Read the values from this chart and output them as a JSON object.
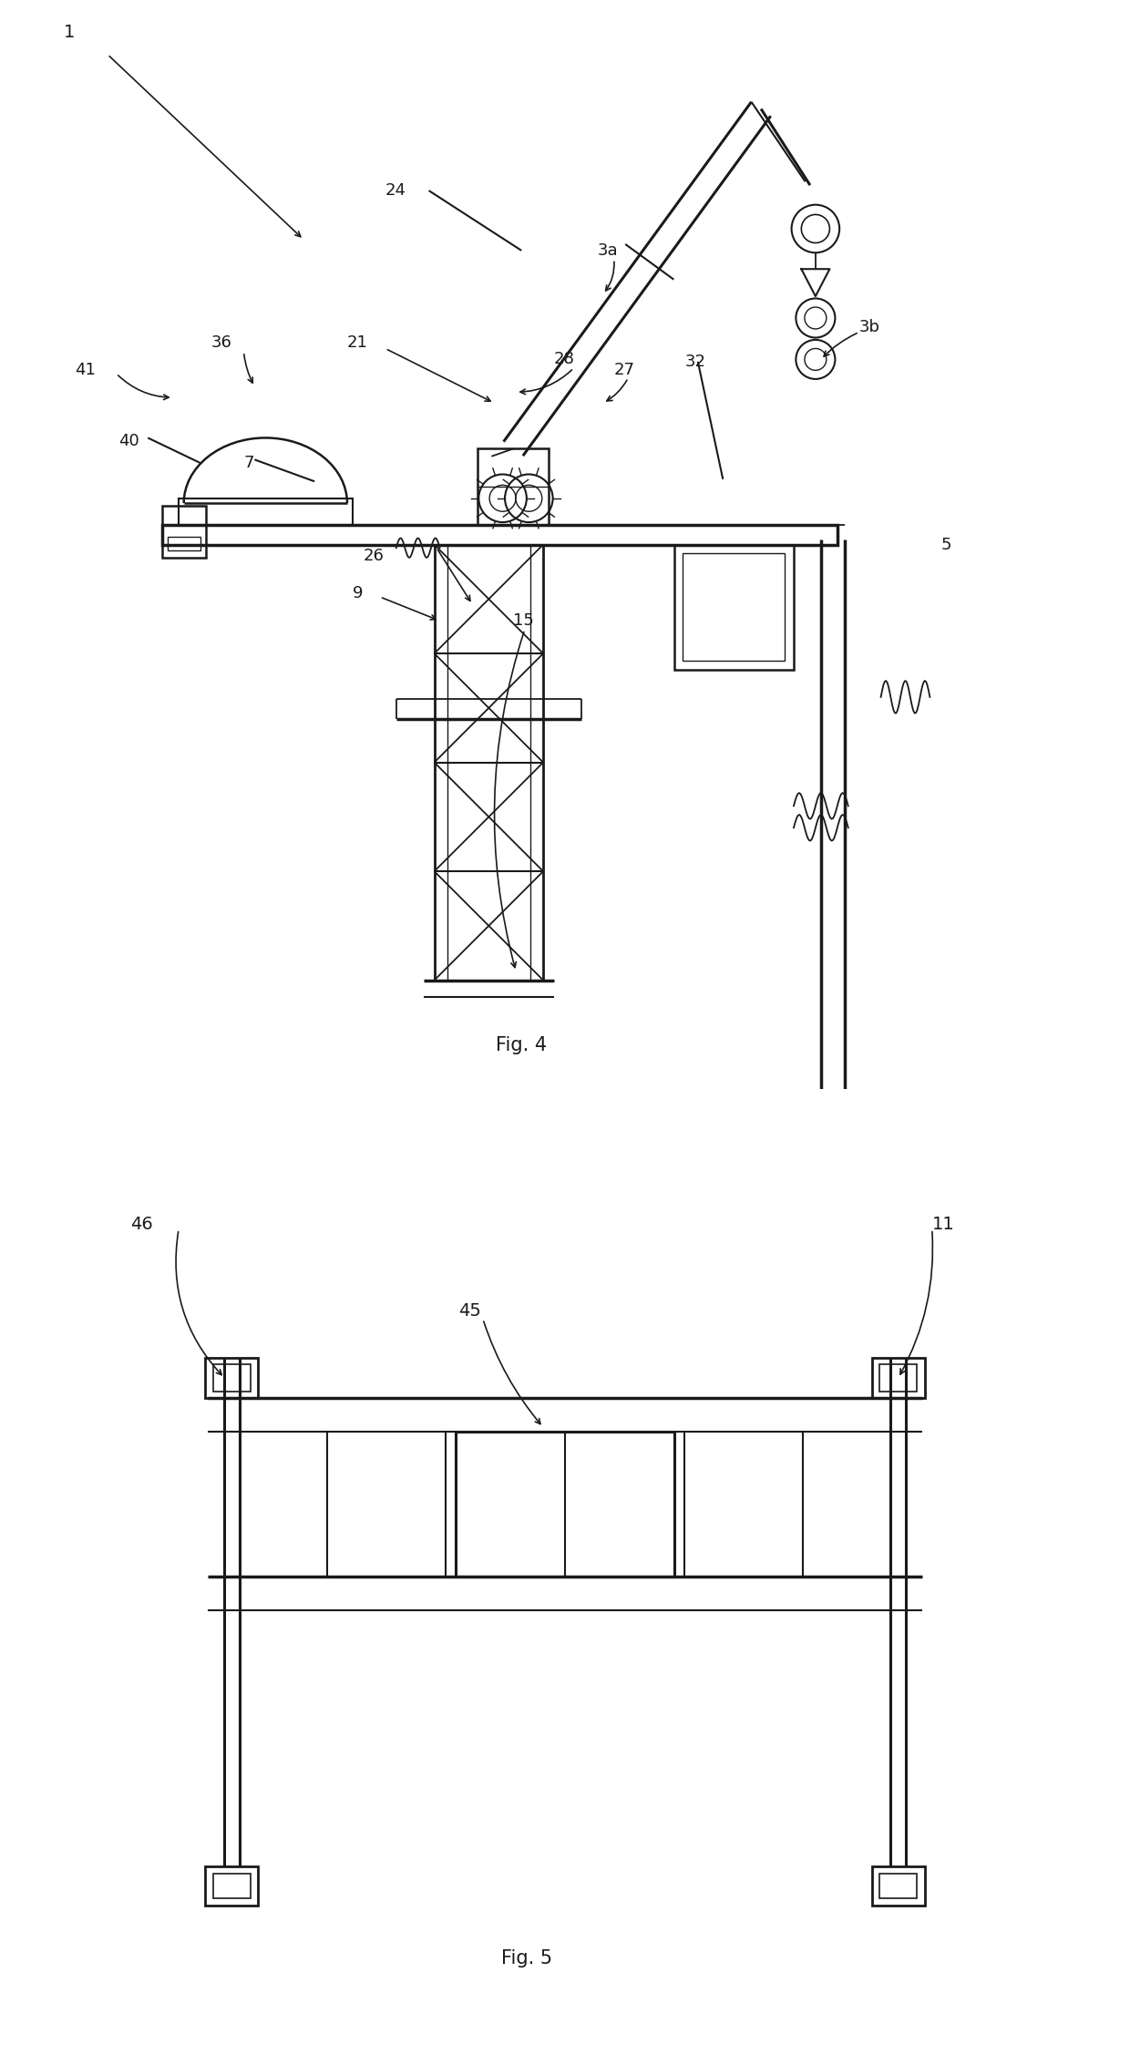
{
  "fig4_caption": "Fig. 4",
  "fig5_caption": "Fig. 5",
  "bg_color": "#ffffff",
  "line_color": "#1a1a1a"
}
